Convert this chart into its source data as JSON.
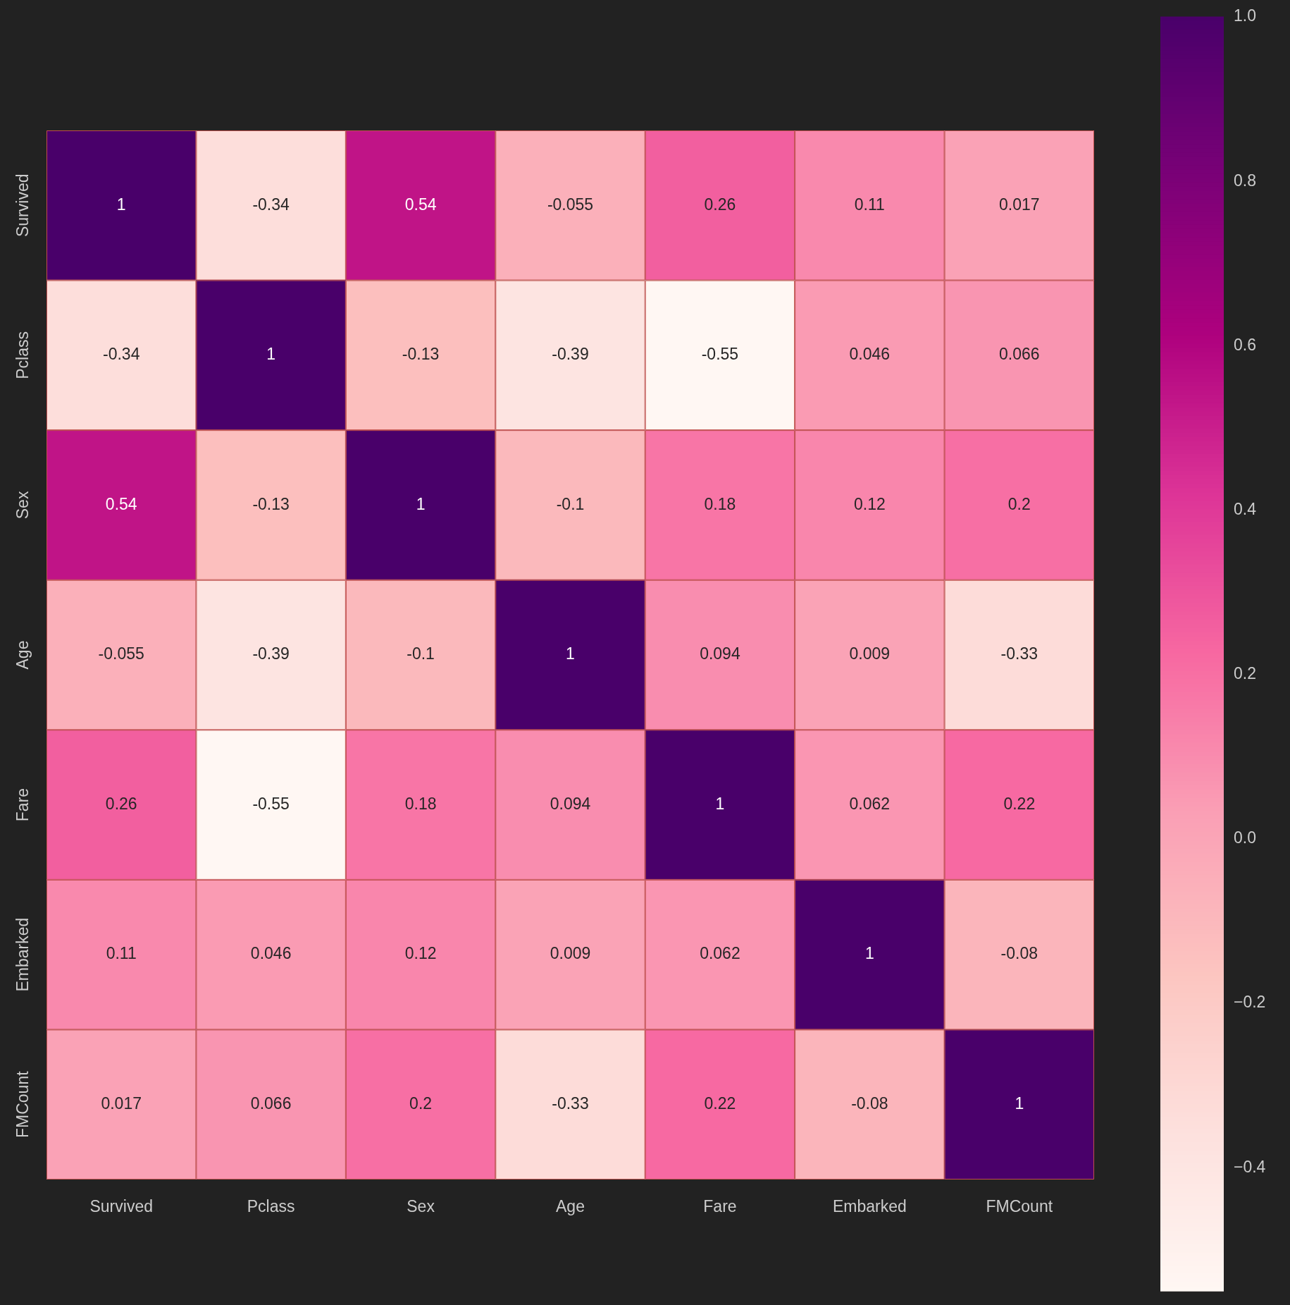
{
  "chart_data": {
    "type": "heatmap",
    "categories": [
      "Survived",
      "Pclass",
      "Sex",
      "Age",
      "Fare",
      "Embarked",
      "FMCount"
    ],
    "y_categories": [
      "Survived",
      "Pclass",
      "Sex",
      "Age",
      "Fare",
      "Embarked",
      "FMCount"
    ],
    "cells": [
      [
        1,
        -0.34,
        0.54,
        -0.055,
        0.26,
        0.11,
        0.017
      ],
      [
        -0.34,
        1,
        -0.13,
        -0.39,
        -0.55,
        0.046,
        0.066
      ],
      [
        0.54,
        -0.13,
        1,
        -0.1,
        0.18,
        0.12,
        0.2
      ],
      [
        -0.055,
        -0.39,
        -0.1,
        1,
        0.094,
        0.009,
        -0.33
      ],
      [
        0.26,
        -0.55,
        0.18,
        0.094,
        1,
        0.062,
        0.22
      ],
      [
        0.11,
        0.046,
        0.12,
        0.009,
        0.062,
        1,
        -0.08
      ],
      [
        0.017,
        0.066,
        0.2,
        -0.33,
        0.22,
        -0.08,
        1
      ]
    ],
    "clim": [
      -0.55,
      1
    ],
    "cticks": [
      {
        "value": -0.4,
        "label": "−0.4"
      },
      {
        "value": -0.2,
        "label": "−0.2"
      },
      {
        "value": 0,
        "label": "0.0"
      },
      {
        "value": 0.2,
        "label": "0.2"
      },
      {
        "value": 0.4,
        "label": "0.4"
      },
      {
        "value": 0.6,
        "label": "0.6"
      },
      {
        "value": 0.8,
        "label": "0.8"
      },
      {
        "value": 1,
        "label": "1.0"
      }
    ],
    "data_labels": true
  }
}
